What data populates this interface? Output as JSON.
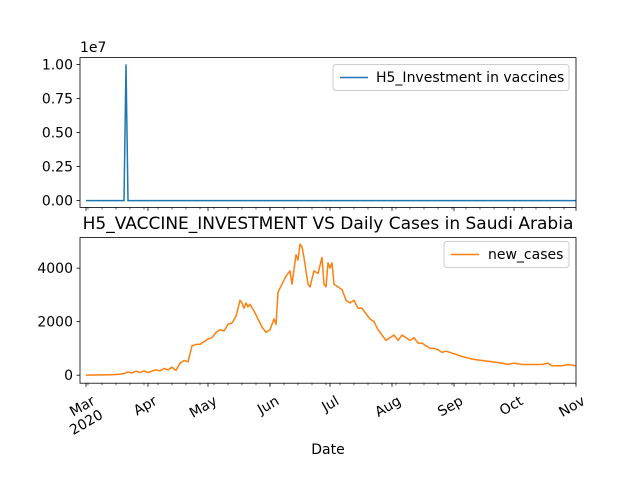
{
  "chart_data": [
    {
      "type": "line",
      "title": "",
      "xlabel": "",
      "ylabel": "",
      "offset_label": "1e7",
      "ylim": [
        -0.05,
        1.05
      ],
      "yticks": [
        0.0,
        0.25,
        0.5,
        0.75,
        1.0
      ],
      "ytick_labels": [
        "0.00",
        "0.25",
        "0.50",
        "0.75",
        "1.00"
      ],
      "legend": "upper right",
      "color": "#1f77b4",
      "series": [
        {
          "name": "H5_Investment in vaccines",
          "points": [
            [
              "2020-03-01",
              0
            ],
            [
              "2020-03-20",
              0
            ],
            [
              "2020-03-21",
              1.0
            ],
            [
              "2020-03-22",
              0
            ],
            [
              "2020-11-01",
              0
            ]
          ]
        }
      ]
    },
    {
      "type": "line",
      "title": "H5_VACCINE_INVESTMENT VS Daily Cases in Saudi Arabia",
      "xlabel": "Date",
      "ylabel": "",
      "ylim": [
        -300,
        5150
      ],
      "yticks": [
        0,
        2000,
        4000
      ],
      "ytick_labels": [
        "0",
        "2000",
        "4000"
      ],
      "legend": "upper right",
      "color": "#ff7f0e",
      "xtick_labels": [
        "Mar\n2020",
        "Apr",
        "May",
        "Jun",
        "Jul",
        "Aug",
        "Sep",
        "Oct",
        "Nov"
      ],
      "series": [
        {
          "name": "new_cases",
          "points": [
            [
              "2020-03-01",
              0
            ],
            [
              "2020-03-05",
              5
            ],
            [
              "2020-03-10",
              10
            ],
            [
              "2020-03-15",
              20
            ],
            [
              "2020-03-18",
              40
            ],
            [
              "2020-03-20",
              60
            ],
            [
              "2020-03-22",
              120
            ],
            [
              "2020-03-24",
              80
            ],
            [
              "2020-03-26",
              150
            ],
            [
              "2020-03-28",
              100
            ],
            [
              "2020-03-30",
              160
            ],
            [
              "2020-04-01",
              100
            ],
            [
              "2020-04-03",
              150
            ],
            [
              "2020-04-05",
              200
            ],
            [
              "2020-04-07",
              160
            ],
            [
              "2020-04-09",
              250
            ],
            [
              "2020-04-11",
              200
            ],
            [
              "2020-04-13",
              300
            ],
            [
              "2020-04-15",
              180
            ],
            [
              "2020-04-17",
              450
            ],
            [
              "2020-04-19",
              550
            ],
            [
              "2020-04-21",
              500
            ],
            [
              "2020-04-23",
              1100
            ],
            [
              "2020-04-25",
              1150
            ],
            [
              "2020-04-27",
              1150
            ],
            [
              "2020-04-29",
              1250
            ],
            [
              "2020-05-01",
              1350
            ],
            [
              "2020-05-03",
              1400
            ],
            [
              "2020-05-05",
              1600
            ],
            [
              "2020-05-07",
              1700
            ],
            [
              "2020-05-09",
              1650
            ],
            [
              "2020-05-11",
              1900
            ],
            [
              "2020-05-13",
              1950
            ],
            [
              "2020-05-15",
              2200
            ],
            [
              "2020-05-17",
              2800
            ],
            [
              "2020-05-18",
              2700
            ],
            [
              "2020-05-19",
              2500
            ],
            [
              "2020-05-20",
              2700
            ],
            [
              "2020-05-21",
              2550
            ],
            [
              "2020-05-22",
              2650
            ],
            [
              "2020-05-24",
              2400
            ],
            [
              "2020-05-26",
              2100
            ],
            [
              "2020-05-28",
              1800
            ],
            [
              "2020-05-30",
              1600
            ],
            [
              "2020-06-01",
              1700
            ],
            [
              "2020-06-03",
              2100
            ],
            [
              "2020-06-04",
              1900
            ],
            [
              "2020-06-05",
              3100
            ],
            [
              "2020-06-07",
              3400
            ],
            [
              "2020-06-09",
              3700
            ],
            [
              "2020-06-11",
              3900
            ],
            [
              "2020-06-12",
              3400
            ],
            [
              "2020-06-14",
              4500
            ],
            [
              "2020-06-15",
              4300
            ],
            [
              "2020-06-16",
              4900
            ],
            [
              "2020-06-17",
              4800
            ],
            [
              "2020-06-18",
              4400
            ],
            [
              "2020-06-20",
              3400
            ],
            [
              "2020-06-21",
              3300
            ],
            [
              "2020-06-23",
              3900
            ],
            [
              "2020-06-25",
              3800
            ],
            [
              "2020-06-27",
              4400
            ],
            [
              "2020-06-28",
              3400
            ],
            [
              "2020-06-29",
              3300
            ],
            [
              "2020-06-30",
              4200
            ],
            [
              "2020-07-01",
              4000
            ],
            [
              "2020-07-02",
              4200
            ],
            [
              "2020-07-03",
              3400
            ],
            [
              "2020-07-05",
              3300
            ],
            [
              "2020-07-07",
              3200
            ],
            [
              "2020-07-09",
              2800
            ],
            [
              "2020-07-11",
              2700
            ],
            [
              "2020-07-13",
              2800
            ],
            [
              "2020-07-15",
              2500
            ],
            [
              "2020-07-17",
              2500
            ],
            [
              "2020-07-19",
              2300
            ],
            [
              "2020-07-21",
              2100
            ],
            [
              "2020-07-23",
              2000
            ],
            [
              "2020-07-25",
              1700
            ],
            [
              "2020-07-27",
              1500
            ],
            [
              "2020-07-29",
              1300
            ],
            [
              "2020-07-31",
              1400
            ],
            [
              "2020-08-02",
              1500
            ],
            [
              "2020-08-04",
              1300
            ],
            [
              "2020-08-06",
              1500
            ],
            [
              "2020-08-08",
              1400
            ],
            [
              "2020-08-10",
              1300
            ],
            [
              "2020-08-12",
              1400
            ],
            [
              "2020-08-14",
              1200
            ],
            [
              "2020-08-16",
              1200
            ],
            [
              "2020-08-18",
              1100
            ],
            [
              "2020-08-20",
              1000
            ],
            [
              "2020-08-22",
              1000
            ],
            [
              "2020-08-24",
              950
            ],
            [
              "2020-08-26",
              850
            ],
            [
              "2020-08-28",
              900
            ],
            [
              "2020-08-30",
              850
            ],
            [
              "2020-09-01",
              800
            ],
            [
              "2020-09-05",
              700
            ],
            [
              "2020-09-10",
              600
            ],
            [
              "2020-09-15",
              550
            ],
            [
              "2020-09-20",
              500
            ],
            [
              "2020-09-25",
              450
            ],
            [
              "2020-09-28",
              400
            ],
            [
              "2020-10-01",
              450
            ],
            [
              "2020-10-05",
              400
            ],
            [
              "2020-10-10",
              400
            ],
            [
              "2020-10-15",
              400
            ],
            [
              "2020-10-18",
              450
            ],
            [
              "2020-10-20",
              350
            ],
            [
              "2020-10-25",
              350
            ],
            [
              "2020-10-28",
              400
            ],
            [
              "2020-11-01",
              350
            ]
          ]
        }
      ]
    }
  ]
}
